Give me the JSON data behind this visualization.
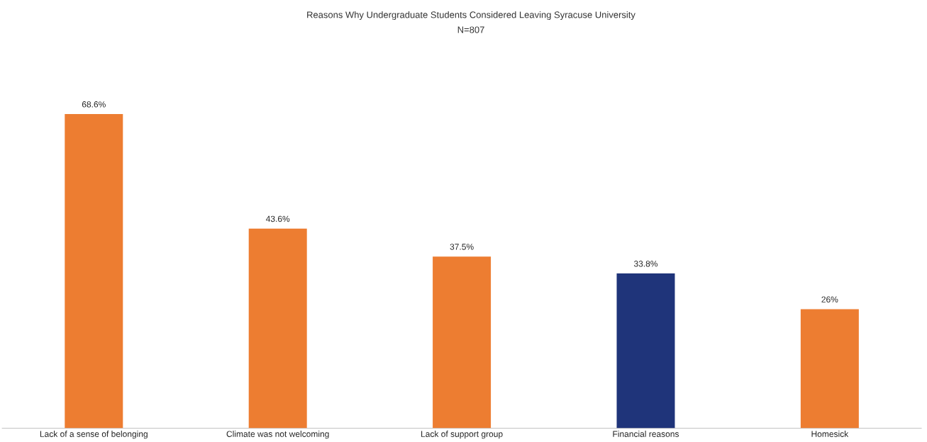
{
  "chart_data": {
    "type": "bar",
    "title": "Reasons Why Undergraduate Students Considered Leaving Syracuse University",
    "subtitle": "N=807",
    "categories": [
      "Lack of a sense of belonging",
      "Climate was not welcoming",
      "Lack of support group",
      "Financial reasons",
      "Homesick"
    ],
    "values": [
      68.6,
      43.6,
      37.5,
      33.8,
      26
    ],
    "value_labels": [
      "68.6%",
      "43.6%",
      "37.5%",
      "33.8%",
      "26%"
    ],
    "colors": [
      "#ed7d31",
      "#ed7d31",
      "#ed7d31",
      "#1f347a",
      "#ed7d31"
    ]
  }
}
